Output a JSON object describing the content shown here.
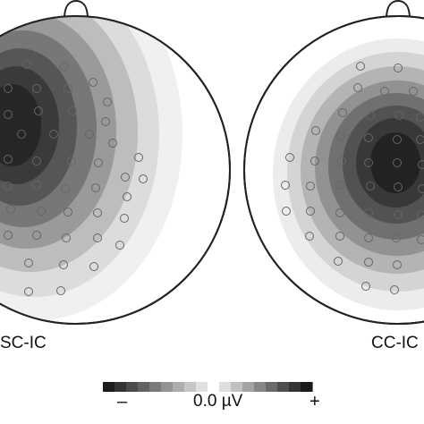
{
  "maps": [
    {
      "condition": "SC-IC"
    },
    {
      "condition": "CC-IC"
    }
  ],
  "colorbar": {
    "min_symbol": "–",
    "center_label": "0.0 µV",
    "max_symbol": "+",
    "levels": [
      "#1c1c1c",
      "#333333",
      "#4a4a4a",
      "#626262",
      "#7a7a7a",
      "#939393",
      "#acacac",
      "#c6c6c6",
      "#e0e0e0",
      "#ffffff",
      "#dedede",
      "#c0c0c0",
      "#a3a3a3",
      "#868686",
      "#6a6a6a",
      "#4e4e4e",
      "#333333",
      "#1a1a1a"
    ]
  },
  "colors": {
    "outline": "#222222",
    "electrode": "#666666",
    "background": "#ffffff"
  }
}
